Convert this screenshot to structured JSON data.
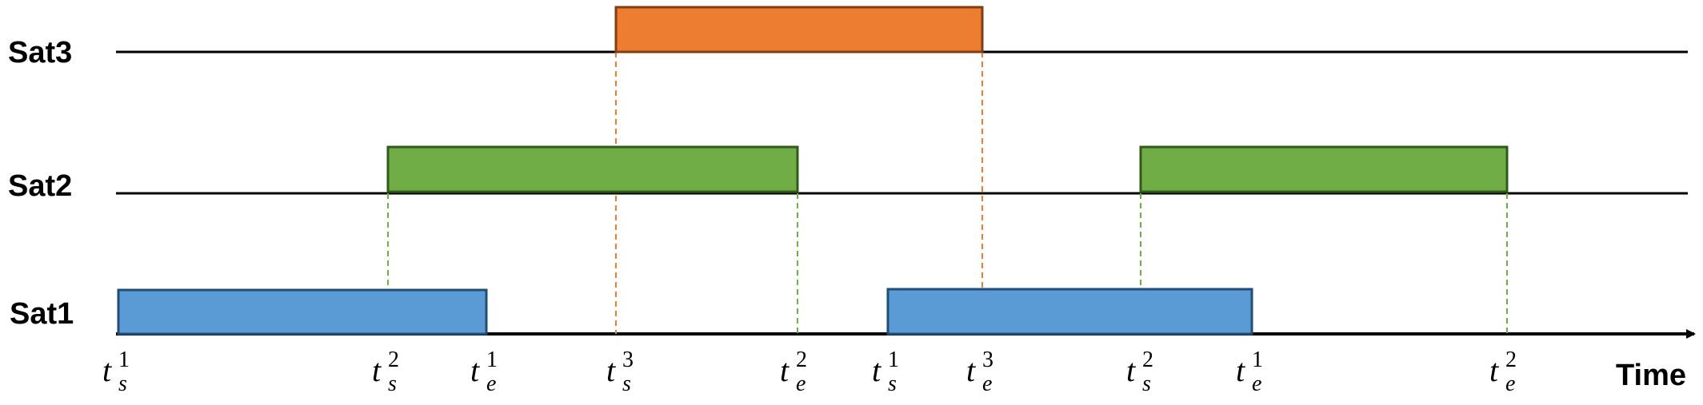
{
  "satellites": [
    {
      "label": "Sat3",
      "color": "#ED7D31",
      "border": "#7F3F12",
      "guide": "#ED7D31",
      "windows": [
        {
          "start_label": {
            "base": "t",
            "sub": "s",
            "sup": "3"
          },
          "end_label": {
            "base": "t",
            "sub": "e",
            "sup": "3"
          }
        }
      ]
    },
    {
      "label": "Sat2",
      "color": "#70AD47",
      "border": "#2E5A1A",
      "guide": "#70AD47",
      "windows": [
        {
          "start_label": {
            "base": "t",
            "sub": "s",
            "sup": "2"
          },
          "end_label": {
            "base": "t",
            "sub": "e",
            "sup": "2"
          }
        },
        {
          "start_label": {
            "base": "t",
            "sub": "s",
            "sup": "2"
          },
          "end_label": {
            "base": "t",
            "sub": "e",
            "sup": "2"
          }
        }
      ]
    },
    {
      "label": "Sat1",
      "color": "#5B9BD5",
      "border": "#1F4E79",
      "guide": "#5B9BD5",
      "windows": [
        {
          "start_label": {
            "base": "t",
            "sub": "s",
            "sup": "1"
          },
          "end_label": {
            "base": "t",
            "sub": "e",
            "sup": "1"
          }
        },
        {
          "start_label": {
            "base": "t",
            "sub": "s",
            "sup": "1"
          },
          "end_label": {
            "base": "t",
            "sub": "e",
            "sup": "1"
          }
        }
      ]
    }
  ],
  "axis": {
    "title": "Time"
  }
}
